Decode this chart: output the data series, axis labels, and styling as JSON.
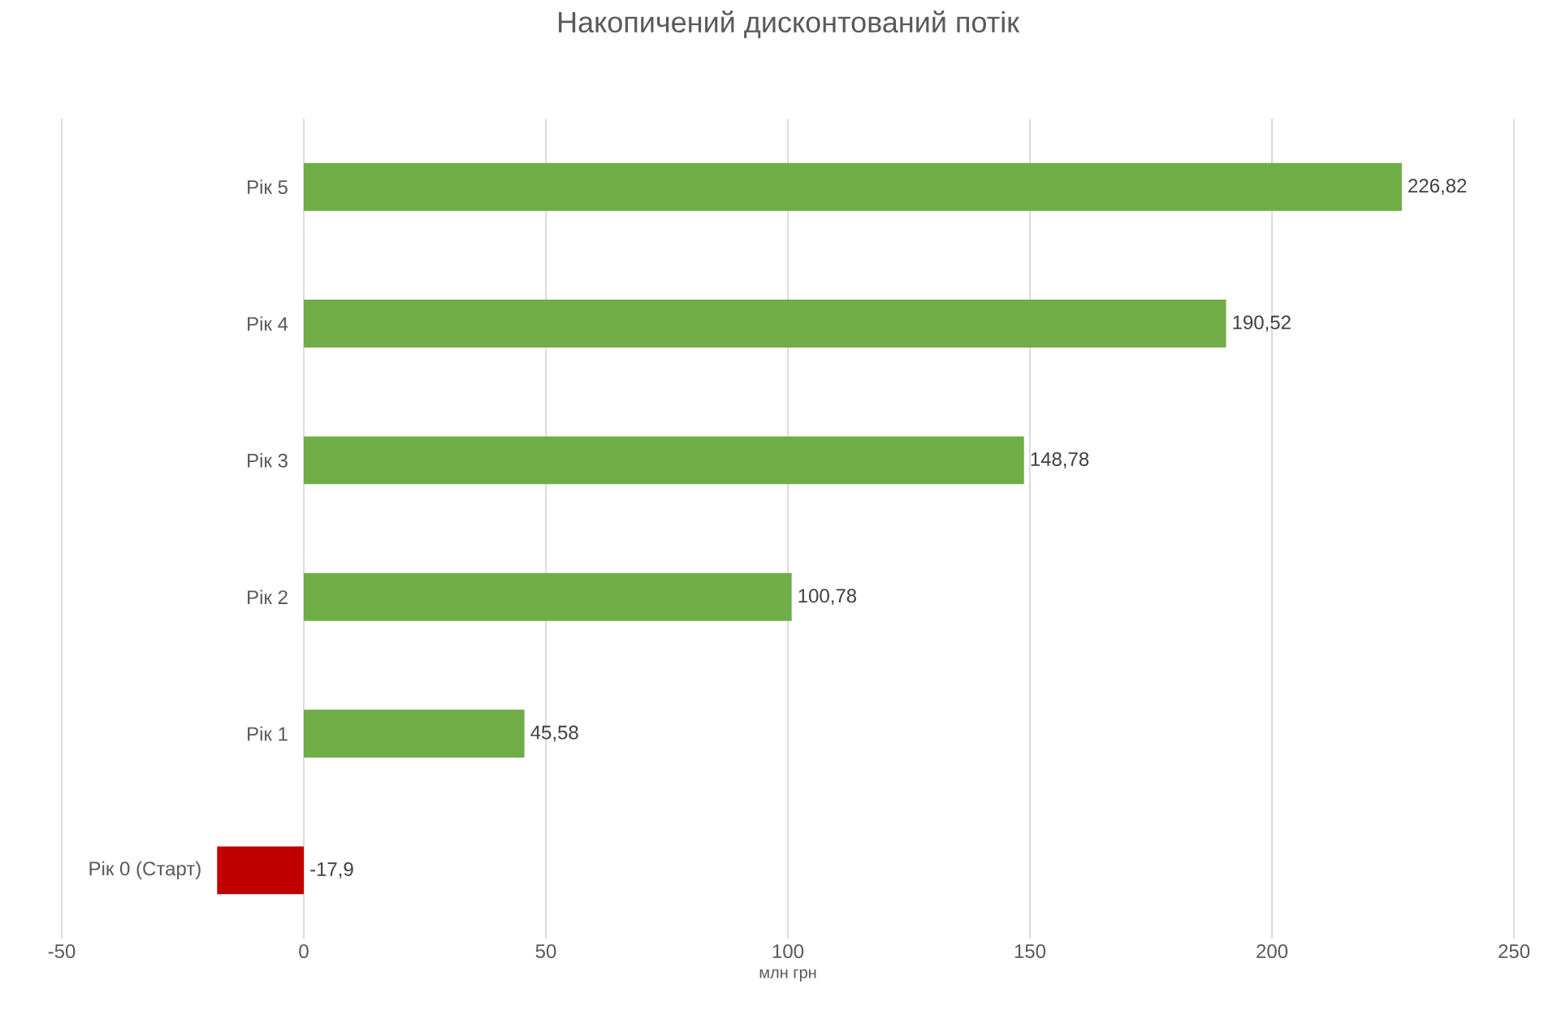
{
  "chart_data": {
    "type": "bar",
    "orientation": "horizontal",
    "title": "Накопичений дисконтований потік",
    "xlabel": "млн грн",
    "categories": [
      "Рік 5",
      "Рік 4",
      "Рік 3",
      "Рік 2",
      "Рік 1",
      "Рік 0 (Старт)"
    ],
    "values": [
      226.82,
      190.52,
      148.78,
      100.78,
      45.58,
      -17.9
    ],
    "value_labels": [
      "226,82",
      "190,52",
      "148,78",
      "100,78",
      "45,58",
      "-17,9"
    ],
    "colors": [
      "#70ad47",
      "#70ad47",
      "#70ad47",
      "#70ad47",
      "#70ad47",
      "#c00000"
    ],
    "xlim": [
      -50,
      250
    ],
    "xticks": [
      -50,
      0,
      50,
      100,
      150,
      200,
      250
    ],
    "grid": "x"
  }
}
